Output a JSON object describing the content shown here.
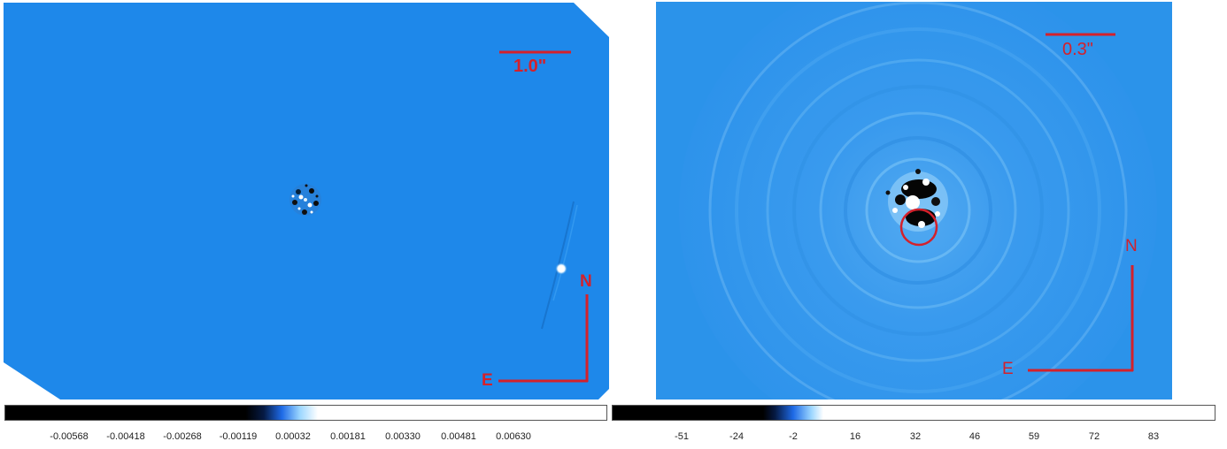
{
  "left_image": {
    "scale_bar_label": "1.0\"",
    "north_label": "N",
    "east_label": "E",
    "colorbar_ticks": [
      "-0.00568",
      "-0.00418",
      "-0.00268",
      "-0.00119",
      "0.00032",
      "0.00181",
      "0.00330",
      "0.00481",
      "0.00630"
    ]
  },
  "right_image": {
    "scale_bar_label": "0.3\"",
    "north_label": "N",
    "east_label": "E",
    "colorbar_ticks": [
      "-51",
      "-24",
      "-2",
      "16",
      "32",
      "46",
      "59",
      "72",
      "83"
    ]
  },
  "colors": {
    "background_blue": "#1e88ea",
    "annotation_red": "#d4212b"
  }
}
